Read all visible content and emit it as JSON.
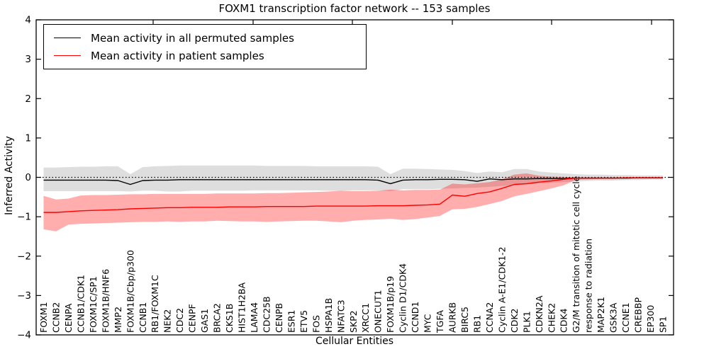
{
  "figure": {
    "title": "FOXM1 transcription factor network -- 153 samples",
    "xlabel": "Cellular Entities",
    "ylabel": "Inferred Activity"
  },
  "legend": {
    "items": [
      {
        "label": "Mean activity in all permuted samples",
        "color": "#000000"
      },
      {
        "label": "Mean activity in patient samples",
        "color": "#ff0000"
      }
    ]
  },
  "chart_data": {
    "type": "line",
    "title": "FOXM1 transcription factor network -- 153 samples",
    "xlabel": "Cellular Entities",
    "ylabel": "Inferred Activity",
    "ylim": [
      -4,
      4
    ],
    "y_ticks": [
      -4,
      -3,
      -2,
      -1,
      0,
      1,
      2,
      3,
      4
    ],
    "grid": false,
    "legend_position": "upper left",
    "zero_line": {
      "y": 0,
      "style": "dotted",
      "color": "#000000"
    },
    "categories": [
      "FOXM1",
      "CCNB2",
      "CENPA",
      "CCNB1/CDK1",
      "FOXM1C/SP1",
      "FOXM1B/HNF6",
      "MMP2",
      "FOXM1B/Cbp/p300",
      "CCNB1",
      "RB1/FOXM1C",
      "NEK2",
      "CDC2",
      "CENPF",
      "GAS1",
      "BRCA2",
      "CKS1B",
      "HIST1H2BA",
      "LAMA4",
      "CDC25B",
      "CENPB",
      "ESR1",
      "ETV5",
      "FOS",
      "HSPA1B",
      "NFATC3",
      "SKP2",
      "XRCC1",
      "ONECUT1",
      "FOXM1B/p19",
      "Cyclin D1/CDK4",
      "CCND1",
      "MYC",
      "TGFA",
      "AURKB",
      "BIRC5",
      "RB1",
      "CCNA2",
      "Cyclin A-E1/CDK1-2",
      "CDK2",
      "PLK1",
      "CDKN2A",
      "CHEK2",
      "CDK4",
      "G2/M transition of mitotic cell cycle",
      "response to radiation",
      "MAP2K1",
      "GSK3A",
      "CCNE1",
      "CREBBP",
      "EP300",
      "SP1"
    ],
    "series": [
      {
        "name": "Mean activity in all permuted samples",
        "color": "#000000",
        "band_color": "rgba(0,0,0,0.13)",
        "values": [
          -0.07,
          -0.07,
          -0.07,
          -0.07,
          -0.07,
          -0.07,
          -0.08,
          -0.18,
          -0.08,
          -0.07,
          -0.07,
          -0.06,
          -0.06,
          -0.06,
          -0.06,
          -0.06,
          -0.06,
          -0.06,
          -0.06,
          -0.06,
          -0.06,
          -0.06,
          -0.06,
          -0.06,
          -0.06,
          -0.06,
          -0.06,
          -0.07,
          -0.16,
          -0.07,
          -0.06,
          -0.06,
          -0.05,
          -0.05,
          -0.06,
          -0.1,
          -0.04,
          -0.06,
          -0.04,
          -0.04,
          -0.03,
          -0.03,
          -0.03,
          -0.02,
          -0.02,
          -0.02,
          -0.02,
          -0.02,
          -0.01,
          -0.01,
          -0.01
        ],
        "band_upper": [
          0.25,
          0.25,
          0.26,
          0.27,
          0.27,
          0.28,
          0.28,
          0.08,
          0.26,
          0.28,
          0.29,
          0.3,
          0.3,
          0.3,
          0.3,
          0.3,
          0.3,
          0.3,
          0.29,
          0.29,
          0.29,
          0.29,
          0.28,
          0.28,
          0.28,
          0.28,
          0.28,
          0.27,
          0.08,
          0.22,
          0.22,
          0.21,
          0.2,
          0.19,
          0.16,
          0.11,
          0.15,
          0.13,
          0.21,
          0.21,
          0.15,
          0.12,
          0.1,
          0.08,
          0.07,
          0.07,
          0.06,
          0.06,
          0.05,
          0.05,
          0.05
        ],
        "band_lower": [
          -0.35,
          -0.35,
          -0.35,
          -0.35,
          -0.35,
          -0.35,
          -0.35,
          -0.36,
          -0.34,
          -0.34,
          -0.36,
          -0.36,
          -0.34,
          -0.34,
          -0.34,
          -0.34,
          -0.34,
          -0.33,
          -0.33,
          -0.33,
          -0.33,
          -0.33,
          -0.33,
          -0.34,
          -0.34,
          -0.33,
          -0.33,
          -0.33,
          -0.35,
          -0.3,
          -0.3,
          -0.3,
          -0.29,
          -0.28,
          -0.27,
          -0.26,
          -0.24,
          -0.22,
          -0.2,
          -0.18,
          -0.16,
          -0.14,
          -0.12,
          -0.1,
          -0.09,
          -0.08,
          -0.08,
          -0.07,
          -0.07,
          -0.06,
          -0.06
        ]
      },
      {
        "name": "Mean activity in patient samples",
        "color": "#ff0000",
        "band_color": "rgba(255,0,0,0.32)",
        "values": [
          -0.89,
          -0.89,
          -0.87,
          -0.85,
          -0.84,
          -0.83,
          -0.82,
          -0.8,
          -0.79,
          -0.78,
          -0.77,
          -0.77,
          -0.76,
          -0.76,
          -0.76,
          -0.75,
          -0.75,
          -0.75,
          -0.74,
          -0.74,
          -0.74,
          -0.74,
          -0.73,
          -0.73,
          -0.73,
          -0.73,
          -0.73,
          -0.72,
          -0.72,
          -0.72,
          -0.71,
          -0.7,
          -0.68,
          -0.45,
          -0.48,
          -0.41,
          -0.37,
          -0.28,
          -0.18,
          -0.16,
          -0.12,
          -0.09,
          -0.05,
          -0.02,
          -0.02,
          -0.02,
          -0.02,
          -0.01,
          -0.01,
          -0.01,
          -0.01
        ],
        "band_upper": [
          -0.47,
          -0.56,
          -0.54,
          -0.46,
          -0.45,
          -0.45,
          -0.44,
          -0.43,
          -0.43,
          -0.42,
          -0.42,
          -0.42,
          -0.42,
          -0.42,
          -0.41,
          -0.41,
          -0.41,
          -0.41,
          -0.4,
          -0.4,
          -0.39,
          -0.38,
          -0.37,
          -0.36,
          -0.34,
          -0.35,
          -0.35,
          -0.34,
          -0.31,
          -0.33,
          -0.32,
          -0.32,
          -0.31,
          -0.16,
          -0.18,
          -0.15,
          -0.12,
          -0.05,
          0.07,
          0.1,
          0.04,
          0.02,
          0.01,
          0.0,
          0.0,
          0.0,
          0.0,
          0.0,
          0.0,
          0.0,
          0.0
        ],
        "band_lower": [
          -1.32,
          -1.37,
          -1.2,
          -1.18,
          -1.17,
          -1.16,
          -1.15,
          -1.14,
          -1.13,
          -1.13,
          -1.12,
          -1.13,
          -1.12,
          -1.12,
          -1.1,
          -1.11,
          -1.12,
          -1.12,
          -1.13,
          -1.12,
          -1.11,
          -1.1,
          -1.1,
          -1.12,
          -1.14,
          -1.1,
          -1.08,
          -1.07,
          -1.05,
          -1.08,
          -1.06,
          -1.02,
          -0.98,
          -0.81,
          -0.8,
          -0.75,
          -0.68,
          -0.6,
          -0.48,
          -0.42,
          -0.35,
          -0.28,
          -0.2,
          -0.06,
          -0.05,
          -0.04,
          -0.04,
          -0.03,
          -0.03,
          -0.03,
          -0.03
        ]
      }
    ]
  }
}
